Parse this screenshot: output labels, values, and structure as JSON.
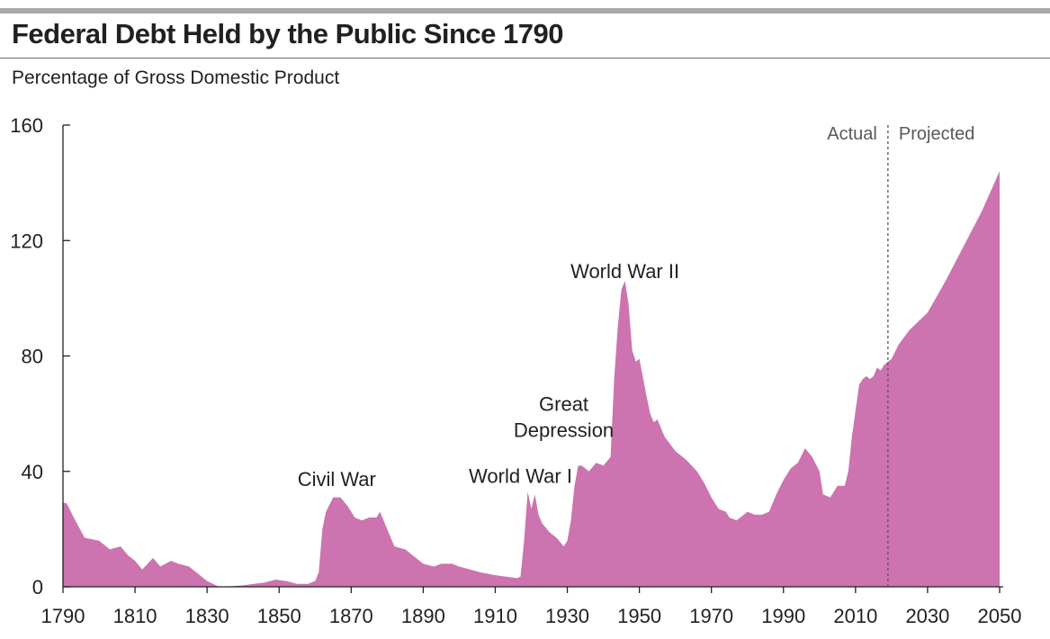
{
  "header": {
    "title": "Federal Debt Held by the Public Since 1790",
    "subtitle": "Percentage of Gross Domestic Product"
  },
  "colors": {
    "area": "#cc73b0",
    "axis": "#231f20",
    "divider": "#555555",
    "top_bar": "#a7a9ac"
  },
  "chart_data": {
    "type": "area",
    "title": "Federal Debt Held by the Public Since 1790",
    "subtitle": "Percentage of Gross Domestic Product",
    "xlabel": "",
    "ylabel": "",
    "xlim": [
      1790,
      2050
    ],
    "ylim": [
      0,
      160
    ],
    "x_ticks": [
      1790,
      1810,
      1830,
      1850,
      1870,
      1890,
      1910,
      1930,
      1950,
      1970,
      1990,
      2010,
      2030,
      2050
    ],
    "y_ticks": [
      0,
      40,
      80,
      120,
      160
    ],
    "grid": false,
    "actual_projected_split": 2019,
    "phase_labels": {
      "actual": "Actual",
      "projected": "Projected"
    },
    "annotations": [
      {
        "text": "Civil War",
        "x": 1866,
        "y": 35
      },
      {
        "text": "World War I",
        "x": 1917,
        "y": 36
      },
      {
        "text": "Great",
        "x": 1929,
        "y": 61
      },
      {
        "text": "Depression",
        "x": 1929,
        "y": 52
      },
      {
        "text": "World War II",
        "x": 1946,
        "y": 107
      }
    ],
    "series": [
      {
        "x": [
          1790,
          1791,
          1793,
          1796,
          1800,
          1803,
          1806,
          1808,
          1810,
          1812,
          1815,
          1817,
          1820,
          1822,
          1825,
          1828,
          1830,
          1833,
          1835,
          1838,
          1840,
          1843,
          1846,
          1849,
          1852,
          1855,
          1858,
          1860,
          1861,
          1862,
          1863,
          1865,
          1867,
          1869,
          1871,
          1873,
          1875,
          1877,
          1878,
          1880,
          1882,
          1885,
          1888,
          1890,
          1893,
          1895,
          1898,
          1900,
          1903,
          1906,
          1910,
          1913,
          1916,
          1917,
          1918,
          1919,
          1920,
          1921,
          1922,
          1923,
          1925,
          1927,
          1929,
          1930,
          1931,
          1932,
          1933,
          1934,
          1936,
          1938,
          1940,
          1942,
          1943,
          1944,
          1945,
          1946,
          1947,
          1948,
          1949,
          1950,
          1952,
          1953,
          1954,
          1955,
          1957,
          1960,
          1963,
          1966,
          1968,
          1970,
          1972,
          1974,
          1975,
          1977,
          1980,
          1982,
          1984,
          1986,
          1988,
          1990,
          1992,
          1994,
          1996,
          1998,
          2000,
          2001,
          2003,
          2005,
          2007,
          2008,
          2009,
          2010,
          2011,
          2012,
          2013,
          2014,
          2015,
          2016,
          2017,
          2018,
          2019,
          2020,
          2022,
          2025,
          2030,
          2035,
          2040,
          2045,
          2050
        ],
        "values": [
          29,
          29,
          24,
          17,
          16,
          13,
          14,
          11,
          9,
          6,
          10,
          7,
          9,
          8,
          7,
          4,
          2,
          0.2,
          0.1,
          0.3,
          0.5,
          1,
          1.5,
          2.5,
          2,
          1,
          1,
          2,
          5,
          20,
          26,
          31,
          31,
          28,
          24,
          23,
          24,
          24,
          26,
          20,
          14,
          13,
          10,
          8,
          7,
          8,
          8,
          7,
          6,
          5,
          4,
          3.5,
          3,
          3.5,
          16,
          33,
          27,
          32,
          25,
          22,
          19,
          17,
          14,
          16,
          23,
          35,
          42,
          42,
          40,
          43,
          42,
          45,
          72,
          90,
          103,
          106,
          98,
          82,
          78,
          79,
          66,
          60,
          57,
          58,
          52,
          47,
          44,
          40,
          36,
          31,
          27,
          26,
          24,
          23,
          26,
          25,
          25,
          26,
          32,
          37,
          41,
          43,
          48,
          45,
          40,
          32,
          31,
          35,
          35,
          40,
          52,
          61,
          70,
          72,
          73,
          72,
          73,
          76,
          75,
          77,
          78,
          79,
          84,
          89,
          95,
          106,
          118,
          130,
          144
        ]
      }
    ]
  }
}
